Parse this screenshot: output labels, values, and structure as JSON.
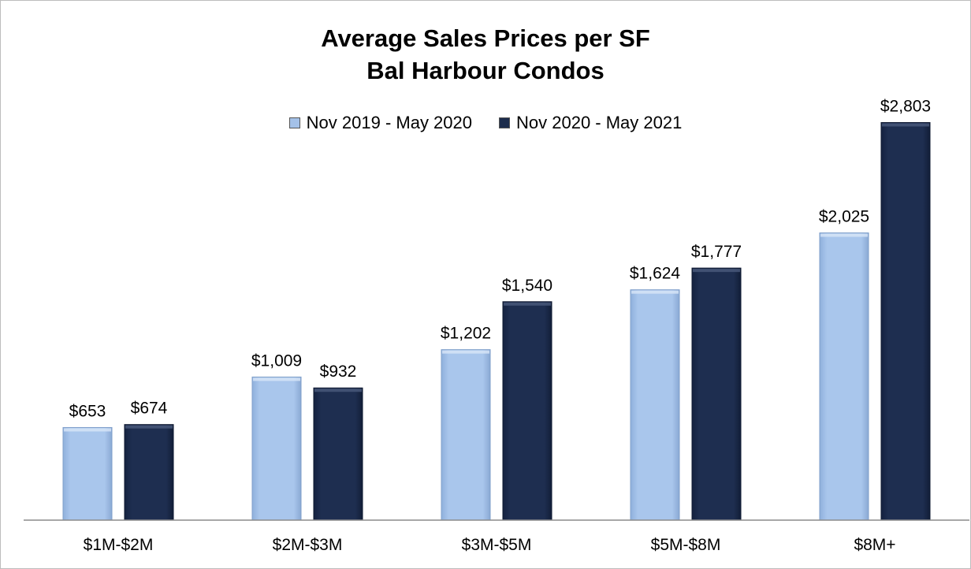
{
  "chart_data": {
    "type": "bar",
    "title": [
      "Average Sales Prices per SF",
      "Bal Harbour Condos"
    ],
    "categories": [
      "$1M-$2M",
      "$2M-$3M",
      "$3M-$5M",
      "$5M-$8M",
      "$8M+"
    ],
    "series": [
      {
        "name": "Nov 2019 - May 2020",
        "values": [
          653,
          1009,
          1202,
          1624,
          2025
        ],
        "labels": [
          "$653",
          "$1,009",
          "$1,202",
          "$1,624",
          "$2,025"
        ],
        "color": "#a4c1e8"
      },
      {
        "name": "Nov 2020 - May 2021",
        "values": [
          674,
          932,
          1540,
          1777,
          2803
        ],
        "labels": [
          "$674",
          "$932",
          "$1,540",
          "$1,777",
          "$2,803"
        ],
        "color": "#1c2c4c"
      }
    ],
    "ylim": [
      0,
      3000
    ],
    "grid": false,
    "legend_position": "top"
  }
}
